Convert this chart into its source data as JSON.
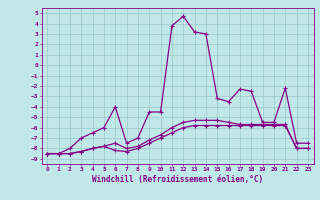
{
  "xlabel": "Windchill (Refroidissement éolien,°C)",
  "bg_color": "#c0e8e8",
  "grid_color": "#9ac8c8",
  "line_color": "#880088",
  "xlim": [
    -0.5,
    23.5
  ],
  "ylim": [
    -9.5,
    5.5
  ],
  "xticks": [
    0,
    1,
    2,
    3,
    4,
    5,
    6,
    7,
    8,
    9,
    10,
    11,
    12,
    13,
    14,
    15,
    16,
    17,
    18,
    19,
    20,
    21,
    22,
    23
  ],
  "yticks": [
    5,
    4,
    3,
    2,
    1,
    0,
    -1,
    -2,
    -3,
    -4,
    -5,
    -6,
    -7,
    -8,
    -9
  ],
  "series1_x": [
    0,
    1,
    2,
    3,
    4,
    5,
    6,
    7,
    8,
    9,
    10,
    11,
    12,
    13,
    14,
    15,
    16,
    17,
    18,
    19,
    20,
    21,
    22,
    23
  ],
  "series1_y": [
    -8.5,
    -8.5,
    -8.0,
    -7.0,
    -6.5,
    -6.0,
    -4.0,
    -7.5,
    -7.0,
    -4.5,
    -4.5,
    3.8,
    4.7,
    3.2,
    3.0,
    -3.2,
    -3.5,
    -2.3,
    -2.5,
    -5.5,
    -5.5,
    -2.2,
    -7.5,
    -7.5
  ],
  "series2_x": [
    0,
    1,
    2,
    3,
    4,
    5,
    6,
    7,
    8,
    9,
    10,
    11,
    12,
    13,
    14,
    15,
    16,
    17,
    18,
    19,
    20,
    21,
    22,
    23
  ],
  "series2_y": [
    -8.5,
    -8.5,
    -8.5,
    -8.3,
    -8.0,
    -7.8,
    -8.2,
    -8.3,
    -8.0,
    -7.5,
    -7.0,
    -6.5,
    -6.0,
    -5.8,
    -5.8,
    -5.8,
    -5.8,
    -5.8,
    -5.8,
    -5.8,
    -5.8,
    -5.8,
    -8.0,
    -8.0
  ],
  "series3_x": [
    0,
    1,
    2,
    3,
    4,
    5,
    6,
    7,
    8,
    9,
    10,
    11,
    12,
    13,
    14,
    15,
    16,
    17,
    18,
    19,
    20,
    21,
    22,
    23
  ],
  "series3_y": [
    -8.5,
    -8.5,
    -8.5,
    -8.3,
    -8.0,
    -7.8,
    -7.5,
    -8.0,
    -7.8,
    -7.2,
    -6.7,
    -6.0,
    -5.5,
    -5.3,
    -5.3,
    -5.3,
    -5.5,
    -5.7,
    -5.7,
    -5.7,
    -5.7,
    -5.7,
    -8.0,
    -8.0
  ],
  "marker": "+",
  "markersize": 3.5,
  "linewidth": 0.9,
  "tick_fontsize": 4.5,
  "xlabel_fontsize": 5.5
}
